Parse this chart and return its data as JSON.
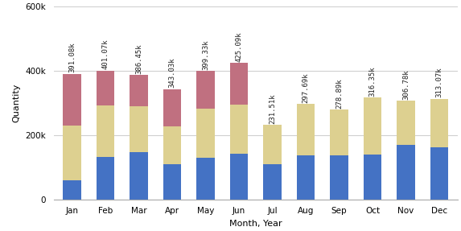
{
  "months": [
    "Jan",
    "Feb",
    "Mar",
    "Apr",
    "May",
    "Jun",
    "Jul",
    "Aug",
    "Sep",
    "Oct",
    "Nov",
    "Dec"
  ],
  "blue": [
    58000,
    132000,
    148000,
    110000,
    130000,
    143000,
    110000,
    136000,
    136000,
    139000,
    170000,
    163000
  ],
  "yellow": [
    172000,
    160000,
    142000,
    118000,
    153000,
    152000,
    121510,
    161690,
    142890,
    177350,
    136780,
    150070
  ],
  "pink": [
    161080,
    109070,
    96450,
    115030,
    116330,
    130090,
    0,
    0,
    0,
    0,
    0,
    0
  ],
  "totals": [
    "391.08k",
    "401.07k",
    "386.45k",
    "343.03k",
    "399.33k",
    "425.09k",
    "231.51k",
    "297.69k",
    "278.89k",
    "316.35k",
    "306.78k",
    "313.07k"
  ],
  "blue_color": "#4472c4",
  "yellow_color": "#ddd090",
  "pink_color": "#c07080",
  "xlabel": "Month, Year",
  "ylabel": "Quantity",
  "ylim": [
    0,
    600000
  ],
  "yticks": [
    0,
    200000,
    400000,
    600000
  ],
  "ytick_labels": [
    "0",
    "200k",
    "400k",
    "600k"
  ],
  "bg_color": "#ffffff",
  "grid_color": "#d0d0d0"
}
